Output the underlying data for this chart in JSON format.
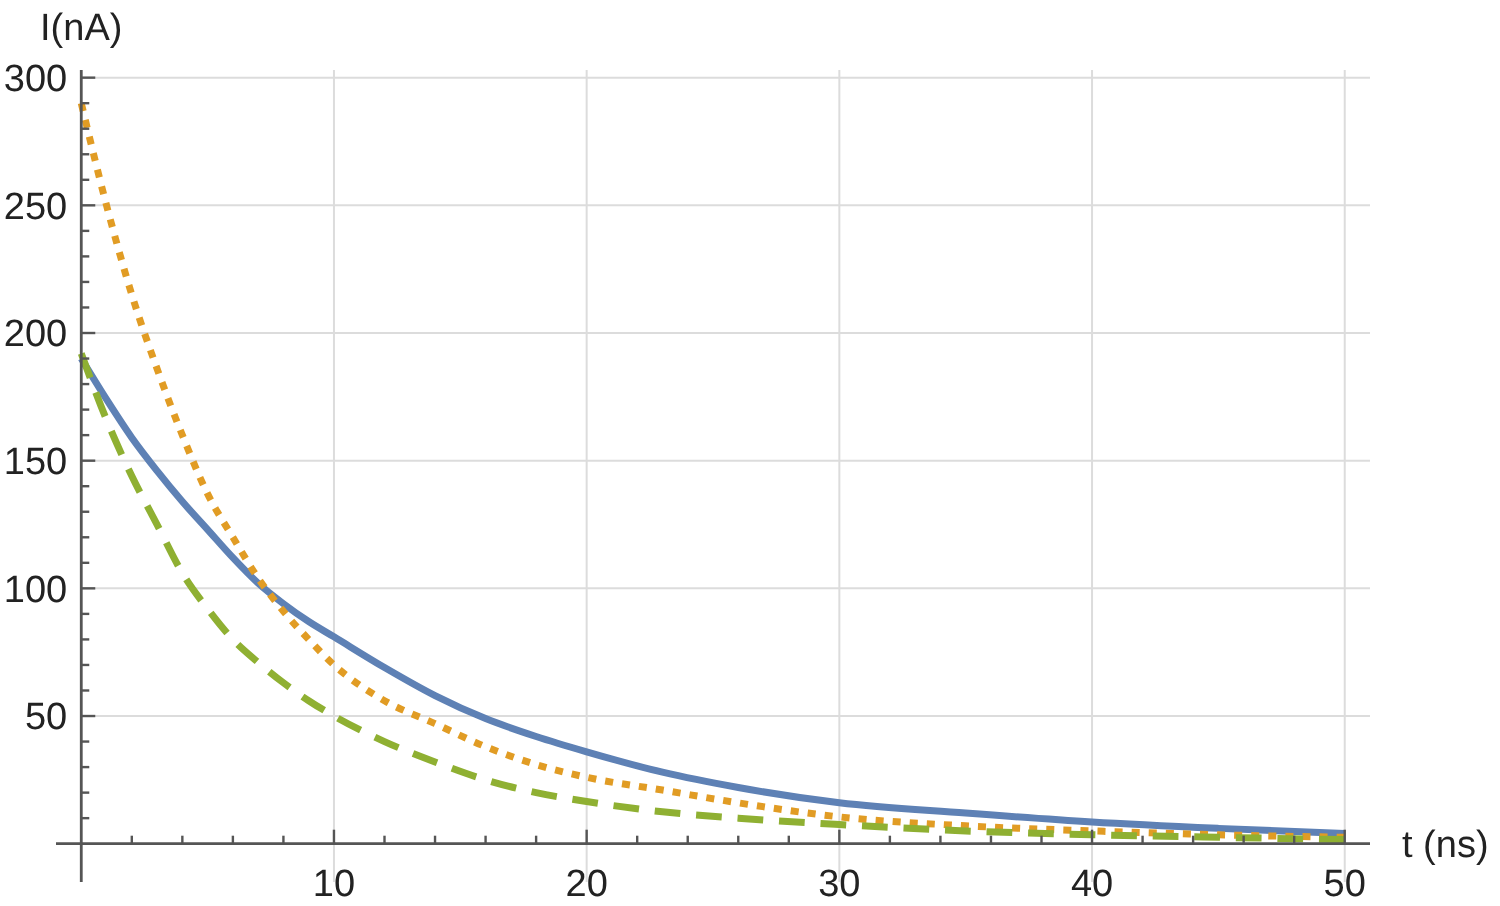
{
  "chart_data": {
    "type": "line",
    "xlabel": "t (ns)",
    "ylabel": "I(nA)",
    "xlim": [
      -1,
      51
    ],
    "ylim": [
      -15,
      303
    ],
    "xticks": [
      {
        "value": 2,
        "label": null
      },
      {
        "value": 4,
        "label": null
      },
      {
        "value": 6,
        "label": null
      },
      {
        "value": 8,
        "label": null
      },
      10,
      {
        "value": 12,
        "label": null
      },
      {
        "value": 14,
        "label": null
      },
      {
        "value": 16,
        "label": null
      },
      {
        "value": 18,
        "label": null
      },
      20,
      {
        "value": 22,
        "label": null
      },
      {
        "value": 24,
        "label": null
      },
      {
        "value": 26,
        "label": null
      },
      {
        "value": 28,
        "label": null
      },
      30,
      {
        "value": 32,
        "label": null
      },
      {
        "value": 34,
        "label": null
      },
      {
        "value": 36,
        "label": null
      },
      {
        "value": 38,
        "label": null
      },
      40,
      {
        "value": 42,
        "label": null
      },
      {
        "value": 44,
        "label": null
      },
      {
        "value": 46,
        "label": null
      },
      {
        "value": 48,
        "label": null
      },
      50
    ],
    "yticks": [
      {
        "value": 10,
        "label": null
      },
      {
        "value": 20,
        "label": null
      },
      {
        "value": 30,
        "label": null
      },
      {
        "value": 40,
        "label": null
      },
      50,
      {
        "value": 60,
        "label": null
      },
      {
        "value": 70,
        "label": null
      },
      {
        "value": 80,
        "label": null
      },
      {
        "value": 90,
        "label": null
      },
      100,
      {
        "value": 110,
        "label": null
      },
      {
        "value": 120,
        "label": null
      },
      {
        "value": 130,
        "label": null
      },
      {
        "value": 140,
        "label": null
      },
      150,
      {
        "value": 160,
        "label": null
      },
      {
        "value": 170,
        "label": null
      },
      {
        "value": 180,
        "label": null
      },
      {
        "value": 190,
        "label": null
      },
      200,
      {
        "value": 210,
        "label": null
      },
      {
        "value": 220,
        "label": null
      },
      {
        "value": 230,
        "label": null
      },
      {
        "value": 240,
        "label": null
      },
      250,
      {
        "value": 260,
        "label": null
      },
      {
        "value": 270,
        "label": null
      },
      {
        "value": 280,
        "label": null
      },
      {
        "value": 290,
        "label": null
      },
      300
    ],
    "grid": true,
    "x": [
      0,
      1,
      2,
      3,
      4,
      5,
      6,
      7,
      8,
      9,
      10,
      12,
      14,
      16,
      18,
      20,
      23,
      26,
      30,
      35,
      40,
      45,
      50
    ],
    "series": [
      {
        "color": "#5e81b5",
        "line_style": "solid",
        "values": [
          190,
          174,
          159,
          146,
          134,
          123,
          112,
          102,
          94,
          87,
          81,
          69,
          58,
          49,
          42,
          36,
          28,
          22,
          16,
          12,
          8.5,
          6,
          4
        ]
      },
      {
        "color": "#e19c24",
        "line_style": "dotted",
        "values": [
          290,
          250,
          215,
          186,
          160,
          137,
          120,
          104,
          91,
          80,
          70,
          56,
          47,
          38,
          31,
          26,
          21,
          16,
          10.5,
          7,
          5,
          3.5,
          2.5
        ]
      },
      {
        "color": "#8fb032",
        "line_style": "dashed",
        "values": [
          192,
          166,
          144,
          125,
          106,
          92,
          80,
          71,
          63,
          56,
          50,
          40,
          32,
          25,
          20,
          16.5,
          12.5,
          10,
          7.5,
          5,
          3.5,
          2.5,
          1.6
        ]
      }
    ]
  }
}
